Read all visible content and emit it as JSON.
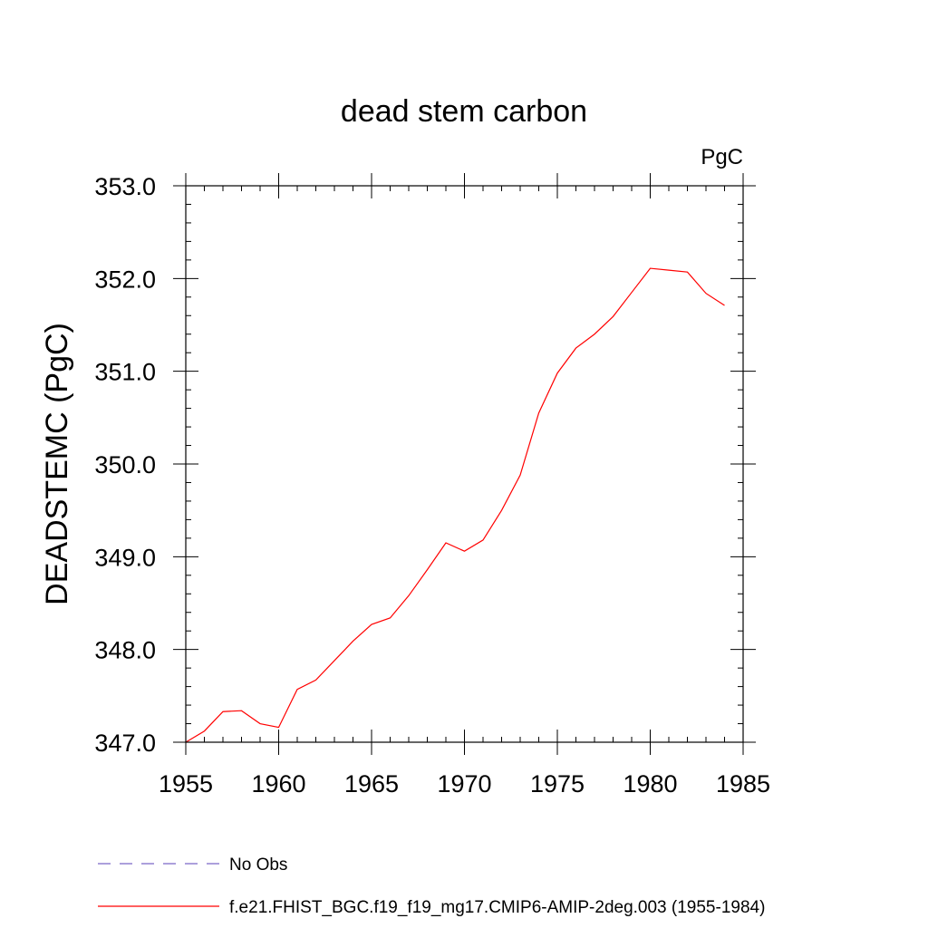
{
  "chart_data": {
    "type": "line",
    "title": "dead stem carbon",
    "units_label": "PgC",
    "ylabel": "DEADSTEMC  (PgC)",
    "xlabel": "",
    "xlim": [
      1955,
      1985
    ],
    "ylim": [
      347.0,
      353.0
    ],
    "x_ticks": [
      1955,
      1960,
      1965,
      1970,
      1975,
      1980,
      1985
    ],
    "x_tick_labels": [
      "1955",
      "1960",
      "1965",
      "1970",
      "1975",
      "1980",
      "1985"
    ],
    "y_ticks": [
      347.0,
      348.0,
      349.0,
      350.0,
      351.0,
      352.0,
      353.0
    ],
    "y_tick_labels": [
      "347.0",
      "348.0",
      "349.0",
      "350.0",
      "351.0",
      "352.0",
      "353.0"
    ],
    "x_minor_step": 1,
    "y_minor_step": 0.2,
    "grid": false,
    "legend_position": "bottom-left",
    "series": [
      {
        "name": "f.e21.FHIST_BGC.f19_f19_mg17.CMIP6-AMIP-2deg.003 (1955-1984)",
        "color": "#ff0000",
        "dash": "solid",
        "x": [
          1955,
          1956,
          1957,
          1958,
          1959,
          1960,
          1961,
          1962,
          1963,
          1964,
          1965,
          1966,
          1967,
          1968,
          1969,
          1970,
          1971,
          1972,
          1973,
          1974,
          1975,
          1976,
          1977,
          1978,
          1979,
          1980,
          1981,
          1982,
          1983,
          1984
        ],
        "y": [
          347.0,
          347.12,
          347.33,
          347.34,
          347.2,
          347.16,
          347.57,
          347.67,
          347.88,
          348.09,
          348.27,
          348.34,
          348.58,
          348.86,
          349.15,
          349.06,
          349.18,
          349.5,
          349.88,
          350.55,
          350.98,
          351.25,
          351.4,
          351.59,
          351.85,
          352.11,
          352.09,
          352.07,
          351.84,
          351.71
        ]
      },
      {
        "name": "No Obs",
        "color": "#7b68c8",
        "dash": "dashed",
        "x": [],
        "y": []
      }
    ]
  }
}
